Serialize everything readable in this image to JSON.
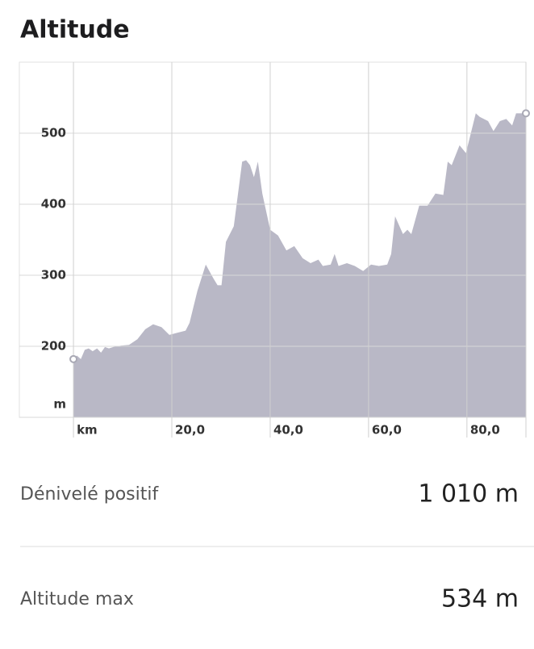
{
  "title": "Altitude",
  "chart_data": {
    "type": "area",
    "color": "#b9b8c6",
    "grid": true,
    "x": [
      0,
      0.7,
      1.5,
      2.3,
      3.1,
      3.9,
      4.8,
      5.6,
      6.4,
      7.2,
      8.1,
      9.7,
      11.3,
      13,
      14.6,
      16.2,
      17.9,
      19.5,
      21.1,
      22.8,
      23.6,
      25.2,
      26.9,
      28.5,
      29.3,
      30.1,
      31,
      32.6,
      34.3,
      35.1,
      35.9,
      36.7,
      37.5,
      38.4,
      40,
      41.6,
      43.3,
      44.9,
      46.6,
      48.2,
      49.8,
      50.7,
      52.3,
      53.1,
      53.9,
      55.6,
      57.2,
      58.9,
      60.5,
      62.1,
      63.8,
      64.6,
      65.4,
      67,
      67.9,
      68.7,
      70.3,
      72,
      73.6,
      75.2,
      76.1,
      76.9,
      78.5,
      79.8,
      81.8,
      82.6,
      84.3,
      85.4,
      86.7,
      88,
      89.2,
      90,
      90.8,
      92
    ],
    "values": [
      182,
      187,
      182,
      195,
      197,
      193,
      197,
      191,
      199,
      197,
      199,
      201,
      202,
      210,
      224,
      231,
      227,
      216,
      219,
      222,
      233,
      278,
      315,
      295,
      286,
      286,
      347,
      369,
      460,
      462,
      455,
      438,
      460,
      415,
      364,
      356,
      335,
      341,
      324,
      317,
      322,
      313,
      315,
      330,
      313,
      317,
      313,
      306,
      315,
      313,
      315,
      330,
      383,
      358,
      364,
      358,
      398,
      398,
      415,
      413,
      460,
      455,
      483,
      472,
      528,
      523,
      517,
      503,
      517,
      520,
      511,
      528,
      528,
      528
    ],
    "xlim": [
      -11,
      92
    ],
    "ylim": [
      100,
      600
    ],
    "xticks": [
      {
        "value": 0,
        "label": "km"
      },
      {
        "value": 20,
        "label": "20,0"
      },
      {
        "value": 40,
        "label": "40,0"
      },
      {
        "value": 60,
        "label": "60,0"
      },
      {
        "value": 80,
        "label": "80,0"
      }
    ],
    "yticks": [
      {
        "value": 100,
        "label": "m"
      },
      200,
      300,
      400,
      500
    ]
  },
  "stats": [
    {
      "label": "Dénivelé positif",
      "value": "1 010 m"
    },
    {
      "label": "Altitude max",
      "value": "534 m"
    }
  ]
}
